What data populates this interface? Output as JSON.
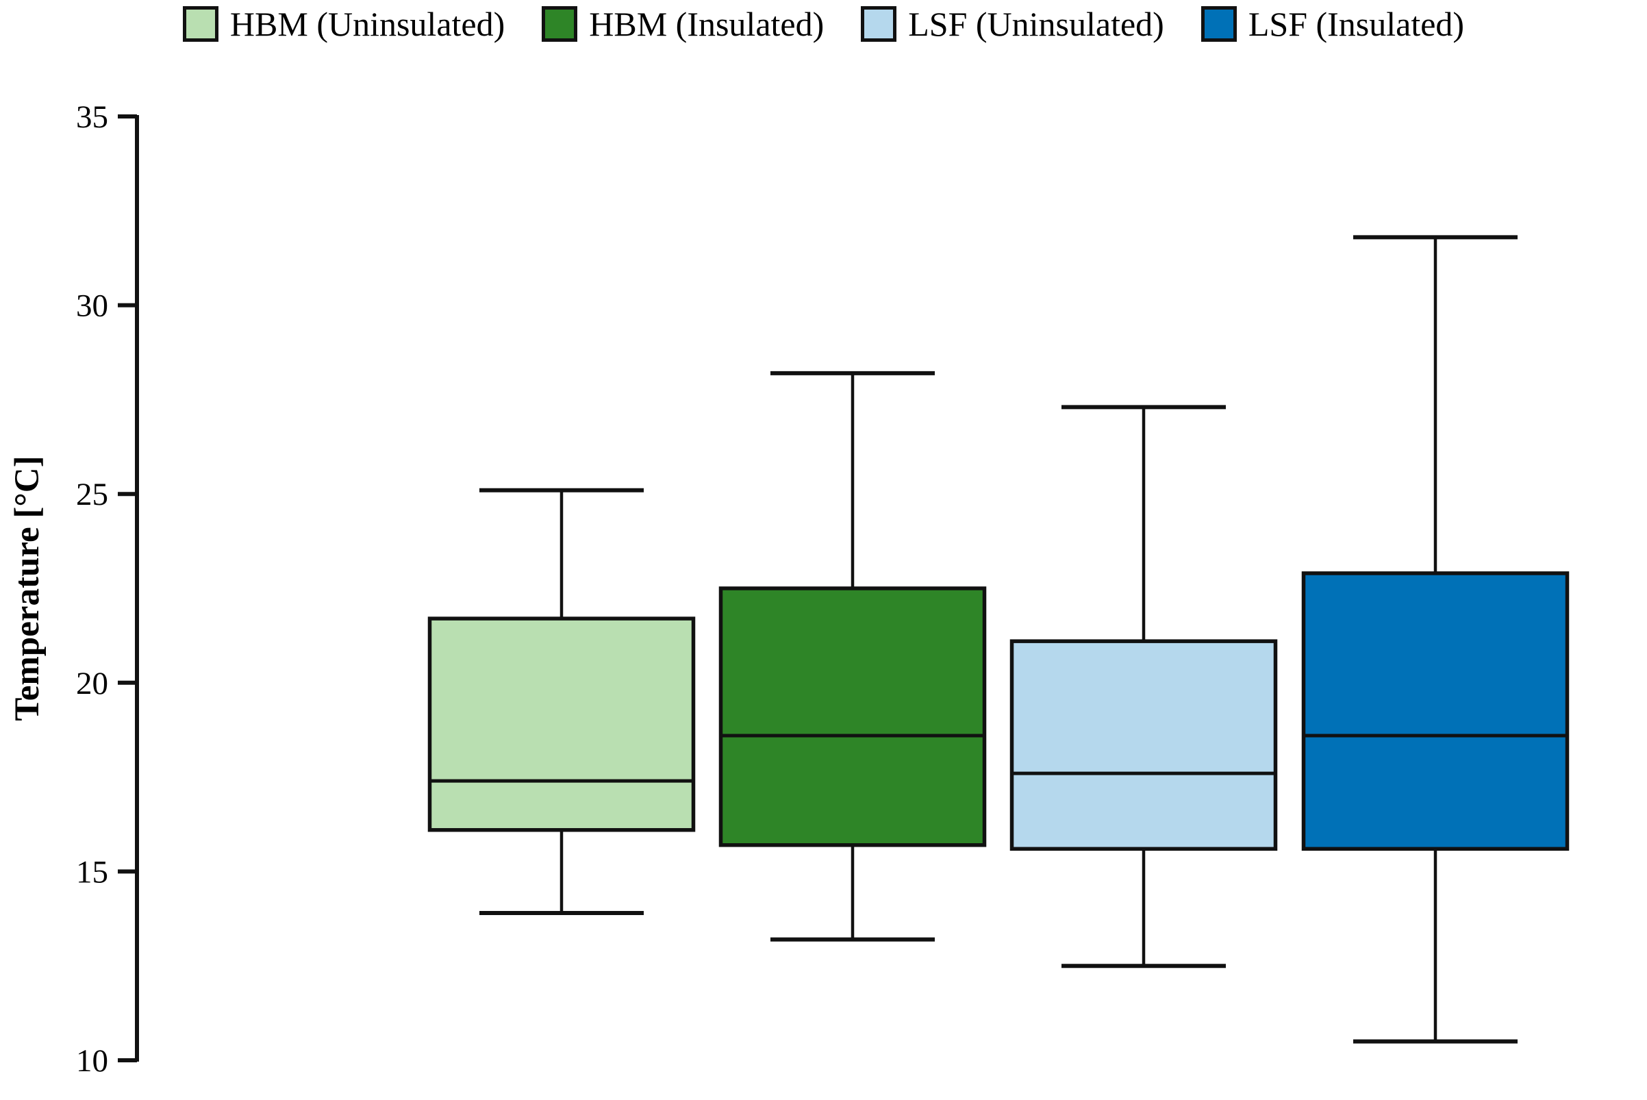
{
  "figure": {
    "title": "",
    "ylabel": "Temperature [°C]"
  },
  "chart_data": {
    "type": "box",
    "title": "",
    "ylabel": "Temperature [°C]",
    "ylim": [
      10,
      35
    ],
    "yticks": [
      35,
      30,
      25,
      20,
      15,
      10
    ],
    "grid": false,
    "legend_position": "top",
    "categories": [
      "HBM (Uninsulated)",
      "HBM (Insulated)",
      "LSF (Uninsulated)",
      "LSF (Insulated)"
    ],
    "series": [
      {
        "name": "HBM (Uninsulated)",
        "slug": "hbm-uninsulated",
        "color": "#B9DFB1",
        "whisker_low": 13.9,
        "q1": 16.1,
        "median": 17.4,
        "q3": 21.7,
        "whisker_high": 25.1
      },
      {
        "name": "HBM (Insulated)",
        "slug": "hbm-insulated",
        "color": "#2E8527",
        "whisker_low": 13.2,
        "q1": 15.7,
        "median": 18.6,
        "q3": 22.5,
        "whisker_high": 28.2
      },
      {
        "name": "LSF (Uninsulated)",
        "slug": "lsf-uninsulated",
        "color": "#B5D8ED",
        "whisker_low": 12.5,
        "q1": 15.6,
        "median": 17.6,
        "q3": 21.1,
        "whisker_high": 27.3
      },
      {
        "name": "LSF (Insulated)",
        "slug": "lsf-insulated",
        "color": "#0071B7",
        "whisker_low": 10.5,
        "q1": 15.6,
        "median": 18.6,
        "q3": 22.9,
        "whisker_high": 31.8
      }
    ],
    "style": {
      "line_color": "#111111",
      "background": "#ffffff"
    }
  }
}
